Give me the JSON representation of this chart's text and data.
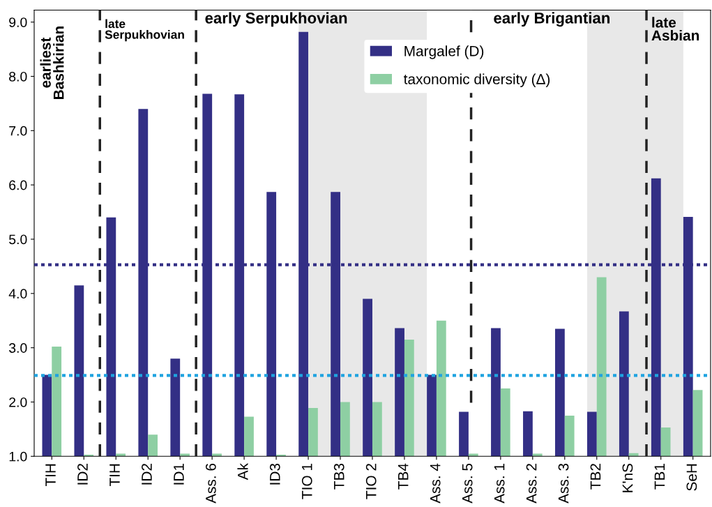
{
  "chart_data": {
    "type": "bar",
    "categories": [
      "TIH",
      "ID2",
      "TIH",
      "ID2",
      "ID1",
      "Ass. 6",
      "Ak",
      "ID3",
      "TIO 1",
      "TB3",
      "TIO 2",
      "TB4",
      "Ass. 4",
      "Ass. 5",
      "Ass. 1",
      "Ass. 2",
      "Ass. 3",
      "TB2",
      "K'nS",
      "TB1",
      "SeH"
    ],
    "series": [
      {
        "name": "Margalef (D)",
        "color": "#332f85",
        "values": [
          2.5,
          4.15,
          5.4,
          7.4,
          2.8,
          7.68,
          7.67,
          5.87,
          8.82,
          5.87,
          3.9,
          3.36,
          2.5,
          1.82,
          3.36,
          1.83,
          3.35,
          1.82,
          3.67,
          6.12,
          5.41
        ]
      },
      {
        "name": "taxonomic diversity (Δ)",
        "color": "#8ecfa3",
        "values": [
          3.02,
          1.03,
          1.05,
          1.4,
          1.05,
          1.05,
          1.73,
          1.03,
          1.89,
          2.0,
          2.0,
          3.15,
          3.5,
          1.05,
          2.25,
          1.05,
          1.75,
          4.3,
          1.06,
          1.53,
          2.22
        ]
      }
    ],
    "ylim": [
      1.0,
      9.22
    ],
    "yticks": [
      {
        "value": 1,
        "label": "1.0"
      },
      {
        "value": 2,
        "label": "2.0"
      },
      {
        "value": 3,
        "label": "3.0"
      },
      {
        "value": 4,
        "label": "4.0"
      },
      {
        "value": 5,
        "label": "5.0"
      },
      {
        "value": 6,
        "label": "6.0"
      },
      {
        "value": 7,
        "label": "7.0"
      },
      {
        "value": 8,
        "label": "8.0"
      },
      {
        "value": 9,
        "label": "9.0"
      }
    ],
    "ref_lines": [
      {
        "axis": "y",
        "value": 4.53,
        "color": "#332f85",
        "line_style": "dotted"
      },
      {
        "axis": "y",
        "value": 2.49,
        "color": "#1fa3e0",
        "line_style": "dotted"
      }
    ],
    "annotations": [
      "earliest\nBashkirian",
      "late\nSerpukhovian",
      "early Serpukhovian",
      "early Brigantian",
      "late\nAsbian"
    ],
    "legend": "top"
  }
}
